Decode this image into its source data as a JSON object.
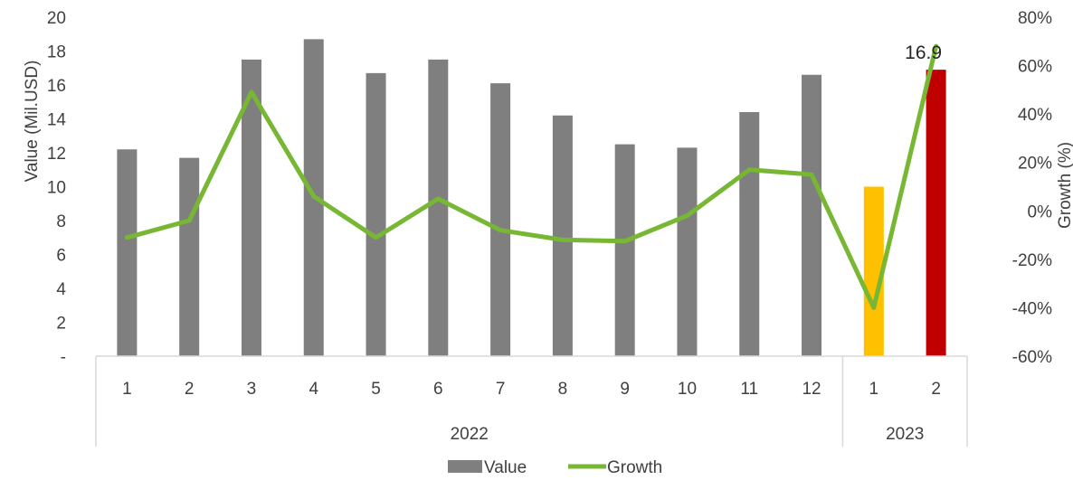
{
  "chart_data": {
    "type": "bar",
    "categories": [
      "1",
      "2",
      "3",
      "4",
      "5",
      "6",
      "7",
      "8",
      "9",
      "10",
      "11",
      "12",
      "1",
      "2"
    ],
    "groups": [
      {
        "label": "2022",
        "count": 12
      },
      {
        "label": "2023",
        "count": 2
      }
    ],
    "series": [
      {
        "name": "Value",
        "type": "bar",
        "axis": "left",
        "values": [
          12.2,
          11.7,
          17.5,
          18.7,
          16.7,
          17.5,
          16.1,
          14.2,
          12.5,
          12.3,
          14.4,
          16.6,
          10.0,
          16.9
        ],
        "colors": [
          "#7f7f7f",
          "#7f7f7f",
          "#7f7f7f",
          "#7f7f7f",
          "#7f7f7f",
          "#7f7f7f",
          "#7f7f7f",
          "#7f7f7f",
          "#7f7f7f",
          "#7f7f7f",
          "#7f7f7f",
          "#7f7f7f",
          "#ffc000",
          "#c00000"
        ]
      },
      {
        "name": "Growth",
        "type": "line",
        "axis": "right",
        "color": "#77b733",
        "values": [
          -11,
          -4,
          49,
          6,
          -11,
          5,
          -8,
          -12,
          -12.5,
          -2,
          17,
          15,
          -40,
          68
        ]
      }
    ],
    "data_labels": [
      {
        "index": 13,
        "text": "16.9"
      }
    ],
    "y_left": {
      "label": "Value (Mil.USD)",
      "ylim": [
        0,
        20
      ],
      "ticks": [
        0,
        2,
        4,
        6,
        8,
        10,
        12,
        14,
        16,
        18,
        20
      ],
      "tick_labels": [
        "-",
        "2",
        "4",
        "6",
        "8",
        "10",
        "12",
        "14",
        "16",
        "18",
        "20"
      ]
    },
    "y_right": {
      "label": "Growth (%)",
      "ylim": [
        -60,
        80
      ],
      "ticks": [
        -60,
        -40,
        -20,
        0,
        20,
        40,
        60,
        80
      ],
      "tick_labels": [
        "-60%",
        "-40%",
        "-20%",
        "0%",
        "20%",
        "40%",
        "60%",
        "80%"
      ]
    },
    "legend": {
      "position": "bottom",
      "items": [
        "Value",
        "Growth"
      ]
    },
    "grid": false
  }
}
